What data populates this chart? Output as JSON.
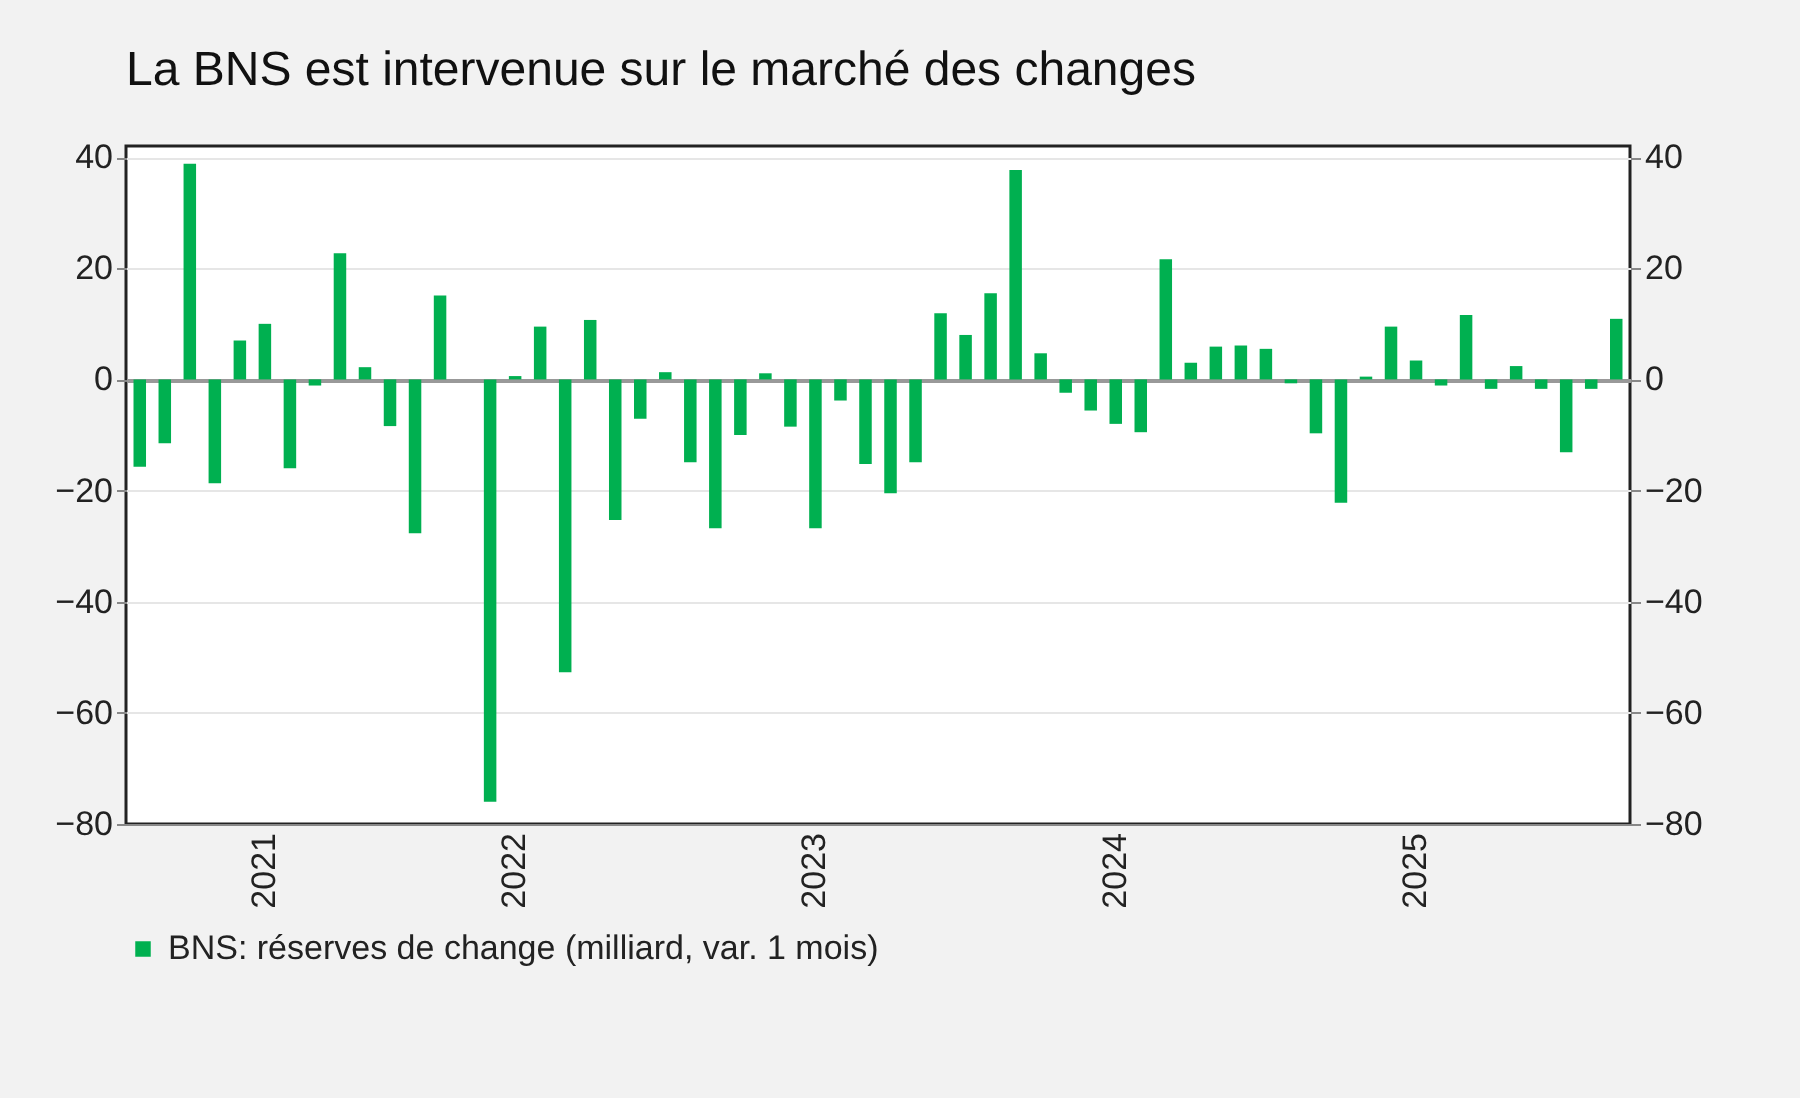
{
  "chart_data": {
    "type": "bar",
    "title": "La BNS est intervenue sur le marché des changes",
    "categories": [
      null,
      null,
      null,
      null,
      null,
      "2021",
      null,
      null,
      null,
      null,
      null,
      null,
      null,
      null,
      null,
      "2022",
      null,
      null,
      null,
      null,
      null,
      null,
      null,
      null,
      null,
      null,
      null,
      "2023",
      null,
      null,
      null,
      null,
      null,
      null,
      null,
      null,
      null,
      null,
      null,
      "2024",
      null,
      null,
      null,
      null,
      null,
      null,
      null,
      null,
      null,
      null,
      null,
      "2025",
      null,
      null,
      null,
      null,
      null,
      null,
      null,
      null
    ],
    "series": [
      {
        "name": "BNS: réserves de change (milliard, var. 1 mois)",
        "color": "#00b050",
        "values": [
          -15.7,
          -11.5,
          38.8,
          -18.7,
          7.0,
          10.0,
          -16.0,
          -1.1,
          22.7,
          2.2,
          -8.4,
          -27.7,
          15.1,
          0,
          -76.0,
          0.6,
          9.5,
          -52.7,
          10.7,
          -25.3,
          -7.1,
          1.3,
          -14.9,
          -26.8,
          -10.0,
          1.1,
          -8.5,
          -26.8,
          -3.8,
          -15.2,
          -20.5,
          -14.9,
          11.9,
          8.0,
          15.5,
          37.7,
          4.7,
          -2.4,
          -5.6,
          -8.0,
          -9.5,
          21.6,
          3.0,
          5.9,
          6.1,
          5.5,
          -0.7,
          -9.7,
          -22.2,
          0.5,
          9.5,
          3.4,
          -1.1,
          11.6,
          -1.7,
          2.4,
          -1.7,
          -13.1,
          -1.7,
          10.9
        ]
      }
    ],
    "ylim": [
      -80,
      42
    ],
    "yticks": [
      -80,
      -60,
      -40,
      -20,
      0,
      20,
      40
    ],
    "y2lim": [
      -80,
      42
    ],
    "y2ticks": [
      -80,
      -60,
      -40,
      -20,
      0,
      20,
      40
    ],
    "grid": "y",
    "legend": "bottom"
  }
}
